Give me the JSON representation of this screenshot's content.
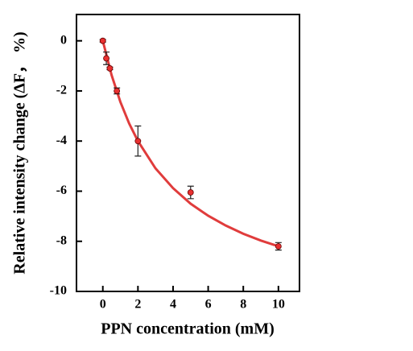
{
  "chart_data": {
    "type": "scatter",
    "xlabel": "PPN concentration (mM)",
    "ylabel": "Relative intensity change (ΔF， %)",
    "x": [
      0,
      0.2,
      0.4,
      0.8,
      2,
      5,
      10
    ],
    "values": [
      0,
      -0.7,
      -1.1,
      -2.0,
      -4.0,
      -6.05,
      -8.2
    ],
    "errors": [
      0.05,
      0.25,
      0.05,
      0.12,
      0.6,
      0.25,
      0.15
    ],
    "color": "#e83030",
    "fit_curve": {
      "color": "#e03c3c",
      "x": [
        0,
        0.5,
        1,
        1.5,
        2,
        3,
        4,
        5,
        6,
        7,
        8,
        9,
        10
      ],
      "values": [
        0,
        -1.37,
        -2.44,
        -3.3,
        -4.0,
        -5.09,
        -5.88,
        -6.5,
        -6.98,
        -7.37,
        -7.7,
        -7.97,
        -8.2
      ]
    },
    "xlim": [
      -1.5,
      11.2
    ],
    "ylim": [
      -10,
      1.05
    ],
    "xticks": [
      0,
      2,
      4,
      6,
      8,
      10
    ],
    "yticks": [
      0,
      -2,
      -4,
      -6,
      -8,
      -10
    ]
  }
}
